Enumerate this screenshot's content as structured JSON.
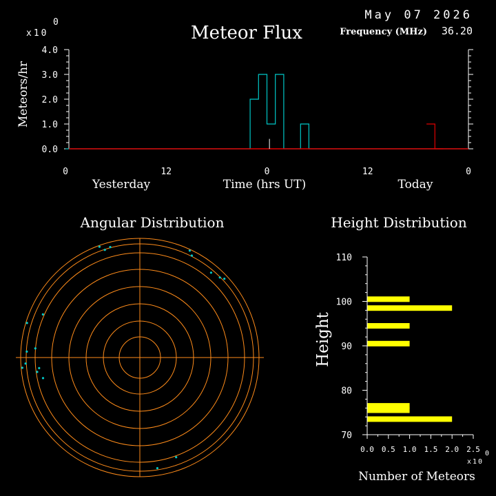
{
  "header": {
    "date": "May 07 2026",
    "frequency_label": "Frequency (MHz)",
    "frequency_value": "36.20",
    "scale_base": "x10",
    "scale_exponent": "0"
  },
  "colors": {
    "background": "#000000",
    "axis": "#ffffff",
    "flux_line": "#00c8c8",
    "flux_today": "#e00000",
    "rings": "#ff8c1a",
    "height_bars": "#ffff00"
  },
  "chart_data": [
    {
      "type": "line",
      "title": "Meteor Flux",
      "ylabel": "Meteors/hr",
      "xlabel": "Time (hrs UT)",
      "day_labels": [
        "Yesterday",
        "Today"
      ],
      "x_tick_labels": [
        "0",
        "12",
        "0",
        "12",
        "0"
      ],
      "x_tick_hours": [
        0,
        12,
        24,
        36,
        48
      ],
      "y_tick_labels": [
        "0.0",
        "1.0",
        "2.0",
        "3.0",
        "4.0"
      ],
      "xlim": [
        0,
        48
      ],
      "ylim": [
        0,
        4
      ],
      "series": [
        {
          "color": "#00c8c8",
          "x": [
            0,
            1,
            2,
            3,
            4,
            5,
            6,
            7,
            8,
            9,
            10,
            11,
            12,
            13,
            14,
            15,
            16,
            17,
            18,
            19,
            20,
            21,
            22,
            23,
            24,
            25,
            26,
            27,
            28,
            29,
            30,
            31,
            32,
            33,
            34,
            35,
            36,
            37,
            38,
            39,
            40,
            41,
            42,
            43,
            44,
            45,
            46,
            47
          ],
          "values": [
            0,
            0,
            0,
            0,
            0,
            0,
            0,
            0,
            0,
            0,
            0,
            0,
            0,
            0,
            0,
            0,
            0,
            0,
            0,
            0,
            0,
            0,
            2,
            3,
            1,
            3,
            0,
            0,
            1,
            0,
            0,
            0,
            0,
            0,
            0,
            0,
            0,
            0,
            0,
            0,
            0,
            0,
            0,
            0,
            0,
            0,
            0,
            0
          ]
        },
        {
          "color": "#e00000",
          "x": [
            43,
            44
          ],
          "values": [
            1,
            0
          ]
        }
      ],
      "current_time_marker_hour": 24.3
    },
    {
      "type": "scatter",
      "title": "Angular Distribution",
      "ring_count": 7,
      "points": [
        {
          "angle": 25,
          "radius": 0.99
        },
        {
          "angle": 27,
          "radius": 0.96
        },
        {
          "angle": 40,
          "radius": 0.93
        },
        {
          "angle": 45,
          "radius": 0.95
        },
        {
          "angle": 47,
          "radius": 0.97
        },
        {
          "angle": 160,
          "radius": 0.89
        },
        {
          "angle": 171,
          "radius": 0.94
        },
        {
          "angle": 258,
          "radius": 0.83
        },
        {
          "angle": 262,
          "radius": 0.87
        },
        {
          "angle": 264,
          "radius": 0.85
        },
        {
          "angle": 265,
          "radius": 0.99
        },
        {
          "angle": 267,
          "radius": 0.96
        },
        {
          "angle": 273,
          "radius": 0.95
        },
        {
          "angle": 275,
          "radius": 0.88
        },
        {
          "angle": 287,
          "radius": 0.99
        },
        {
          "angle": 294,
          "radius": 0.89
        },
        {
          "angle": 340,
          "radius": 0.99
        },
        {
          "angle": 342,
          "radius": 0.95
        },
        {
          "angle": 345,
          "radius": 0.96
        }
      ]
    },
    {
      "type": "bar",
      "orientation": "horizontal",
      "title": "Height Distribution",
      "ylabel": "Height",
      "xlabel": "Number of Meteors",
      "y_tick_labels": [
        "70",
        "80",
        "90",
        "100",
        "110"
      ],
      "x_tick_labels": [
        "0.0",
        "0.5",
        "1.0",
        "1.5",
        "2.0",
        "2.5"
      ],
      "x_scale_base": "x10",
      "x_scale_exponent": "0",
      "ylim": [
        70,
        110
      ],
      "xlim": [
        0,
        2.5
      ],
      "categories": [
        73.5,
        75.5,
        76.5,
        90.5,
        94.5,
        98.5,
        100.5
      ],
      "values": [
        2,
        1,
        1,
        1,
        1,
        2,
        1
      ]
    }
  ]
}
